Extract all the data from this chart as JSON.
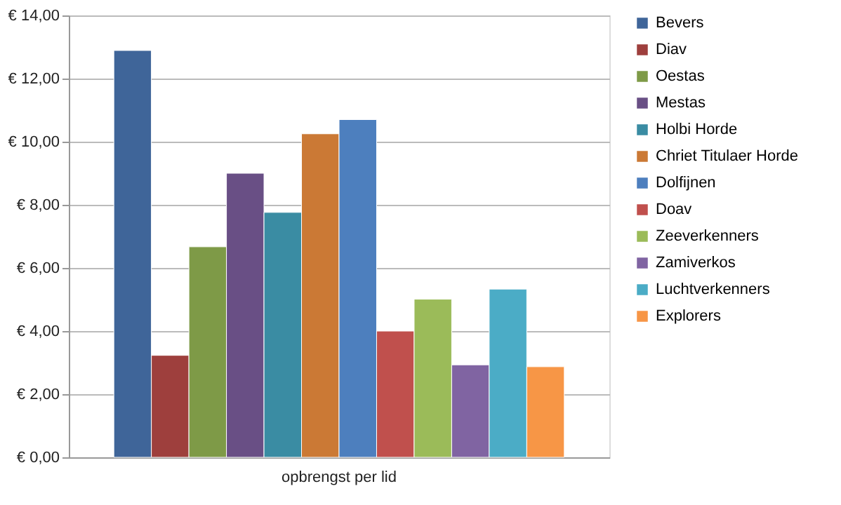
{
  "chart_data": {
    "type": "bar",
    "categories": [
      "opbrengst per lid"
    ],
    "series": [
      {
        "name": "Bevers",
        "color": "#3f6599",
        "values": [
          12.89
        ]
      },
      {
        "name": "Diav",
        "color": "#9e3f3d",
        "values": [
          3.23
        ]
      },
      {
        "name": "Oestas",
        "color": "#7e9a47",
        "values": [
          6.67
        ]
      },
      {
        "name": "Mestas",
        "color": "#694f85",
        "values": [
          9.0
        ]
      },
      {
        "name": "Holbi Horde",
        "color": "#3a8ca3",
        "values": [
          7.76
        ]
      },
      {
        "name": "Chriet Titulaer Horde",
        "color": "#cb7935",
        "values": [
          10.25
        ]
      },
      {
        "name": "Dolfijnen",
        "color": "#4d7fbe",
        "values": [
          10.7
        ]
      },
      {
        "name": "Doav",
        "color": "#c0504d",
        "values": [
          4.0
        ]
      },
      {
        "name": "Zeeverkenners",
        "color": "#9bbb59",
        "values": [
          5.01
        ]
      },
      {
        "name": "Zamiverkos",
        "color": "#8064a2",
        "values": [
          2.93
        ]
      },
      {
        "name": "Luchtverkenners",
        "color": "#4bacc6",
        "values": [
          5.33
        ]
      },
      {
        "name": "Explorers",
        "color": "#f79646",
        "values": [
          2.87
        ]
      }
    ],
    "ylim": [
      0,
      14
    ],
    "yticks": [
      {
        "value": 0,
        "label": "€ 0,00"
      },
      {
        "value": 2,
        "label": "€ 2,00"
      },
      {
        "value": 4,
        "label": "€ 4,00"
      },
      {
        "value": 6,
        "label": "€ 6,00"
      },
      {
        "value": 8,
        "label": "€ 8,00"
      },
      {
        "value": 10,
        "label": "€ 10,00"
      },
      {
        "value": 12,
        "label": "€ 12,00"
      },
      {
        "value": 14,
        "label": "€ 14,00"
      }
    ],
    "grid": "y",
    "legend": "right"
  }
}
